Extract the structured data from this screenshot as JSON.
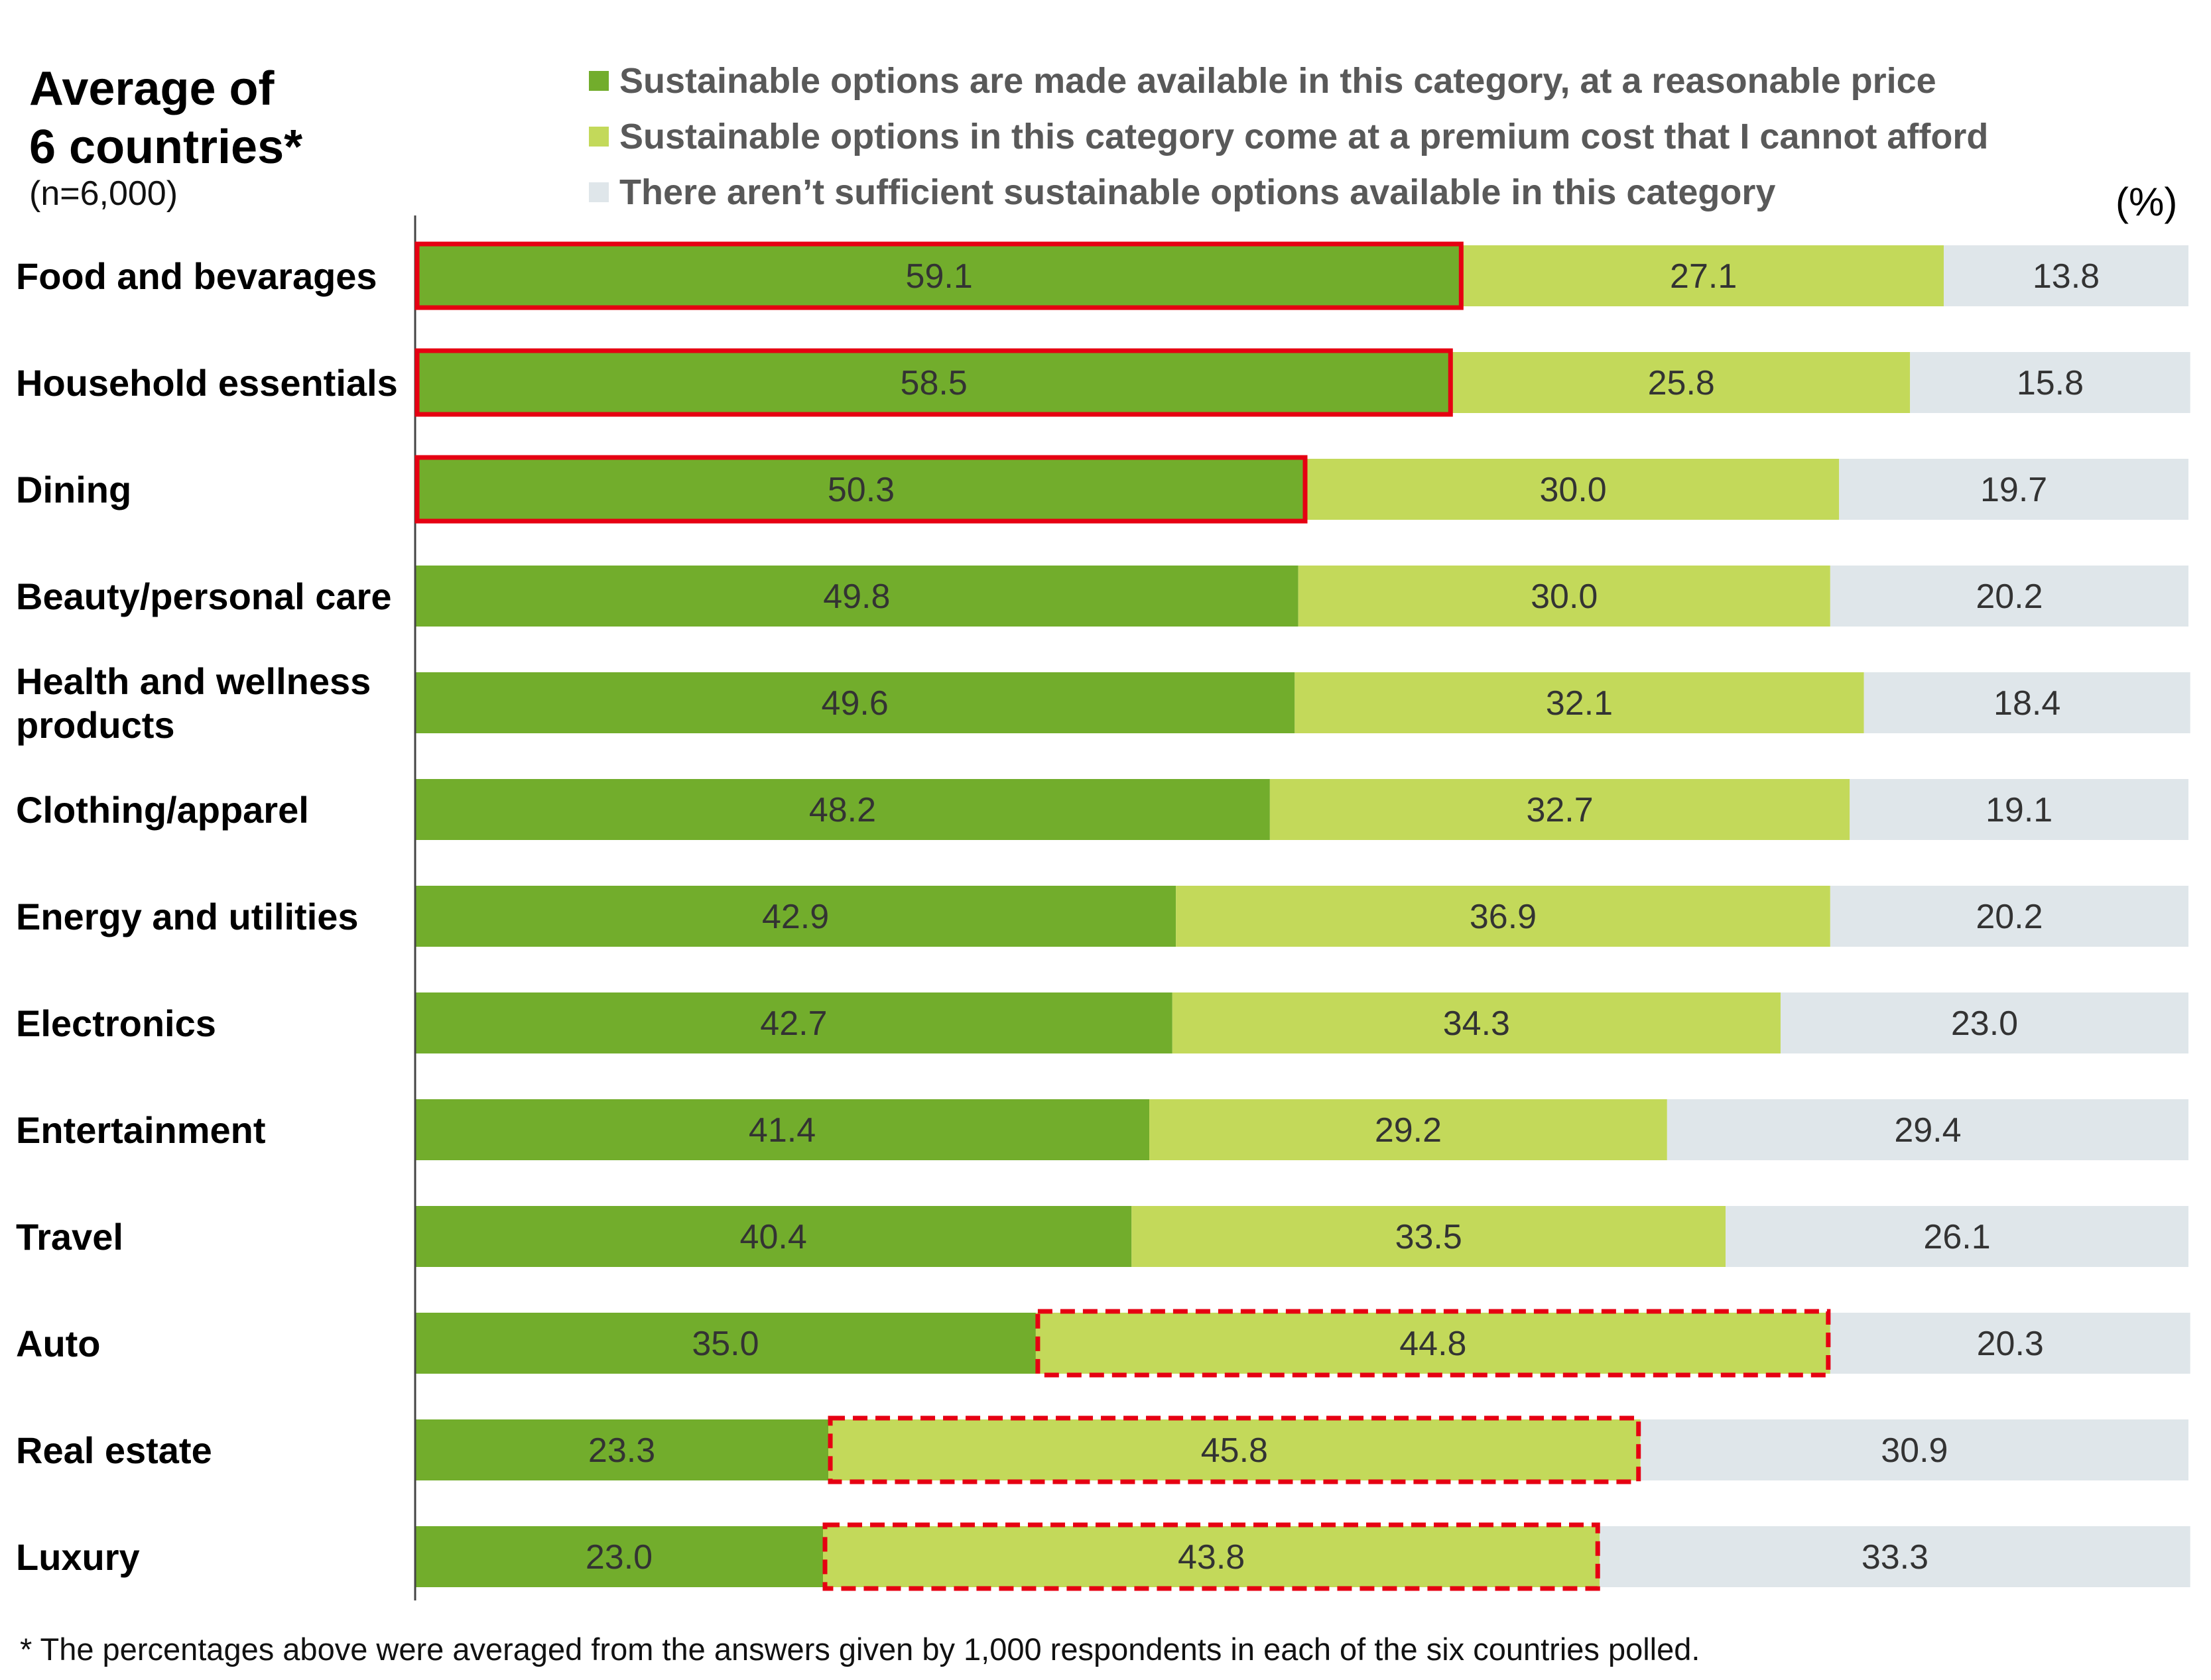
{
  "header": {
    "title_line1": "Average of",
    "title_line2": "6 countries*",
    "sample": "(n=6,000)",
    "unit": "(%)"
  },
  "colors": {
    "series1": "#72AD2C",
    "series2": "#C3D95A",
    "series3": "#DFE6EA",
    "highlight": "#E60012"
  },
  "footnote": "* The percentages above were averaged from the answers given by 1,000 respondents in each of the six countries polled.",
  "chart_data": {
    "type": "bar",
    "orientation": "horizontal",
    "stacked": true,
    "xlim": [
      0,
      100
    ],
    "legend_position": "top",
    "categories": [
      [
        "Food and bevarages"
      ],
      [
        "Household essentials"
      ],
      [
        "Dining"
      ],
      [
        "Beauty/personal care"
      ],
      [
        "Health and wellness",
        "products"
      ],
      [
        "Clothing/apparel"
      ],
      [
        "Energy and utilities"
      ],
      [
        "Electronics"
      ],
      [
        "Entertainment"
      ],
      [
        "Travel"
      ],
      [
        "Auto"
      ],
      [
        "Real estate"
      ],
      [
        "Luxury"
      ]
    ],
    "series": [
      {
        "name": "Sustainable options are made available in this category, at a reasonable price",
        "values": [
          59.1,
          58.5,
          50.3,
          49.8,
          49.6,
          48.2,
          42.9,
          42.7,
          41.4,
          40.4,
          35.0,
          23.3,
          23.0
        ],
        "labels": [
          "59.1",
          "58.5",
          "50.3",
          "49.8",
          "49.6",
          "48.2",
          "42.9",
          "42.7",
          "41.4",
          "40.4",
          "35.0",
          "23.3",
          "23.0"
        ]
      },
      {
        "name": "Sustainable options in this category come at a premium cost that I cannot afford",
        "values": [
          27.1,
          25.8,
          30.0,
          30.0,
          32.1,
          32.7,
          36.9,
          34.3,
          29.2,
          33.5,
          44.8,
          45.8,
          43.8
        ],
        "labels": [
          "27.1",
          "25.8",
          "30.0",
          "30.0",
          "32.1",
          "32.7",
          "36.9",
          "34.3",
          "29.2",
          "33.5",
          "44.8",
          "45.8",
          "43.8"
        ]
      },
      {
        "name": "There aren’t sufficient sustainable options available in this category",
        "values": [
          13.8,
          15.8,
          19.7,
          20.2,
          18.4,
          19.1,
          20.2,
          23.0,
          29.4,
          26.1,
          20.3,
          30.9,
          33.3
        ],
        "labels": [
          "13.8",
          "15.8",
          "19.7",
          "20.2",
          "18.4",
          "19.1",
          "20.2",
          "23.0",
          "29.4",
          "26.1",
          "20.3",
          "30.9",
          "33.3"
        ]
      }
    ],
    "annotations": [
      {
        "category_index": 0,
        "series_index": 0,
        "style": "solid"
      },
      {
        "category_index": 1,
        "series_index": 0,
        "style": "solid"
      },
      {
        "category_index": 2,
        "series_index": 0,
        "style": "solid"
      },
      {
        "category_index": 10,
        "series_index": 1,
        "style": "dashed"
      },
      {
        "category_index": 11,
        "series_index": 1,
        "style": "dashed"
      },
      {
        "category_index": 12,
        "series_index": 1,
        "style": "dashed"
      }
    ]
  }
}
